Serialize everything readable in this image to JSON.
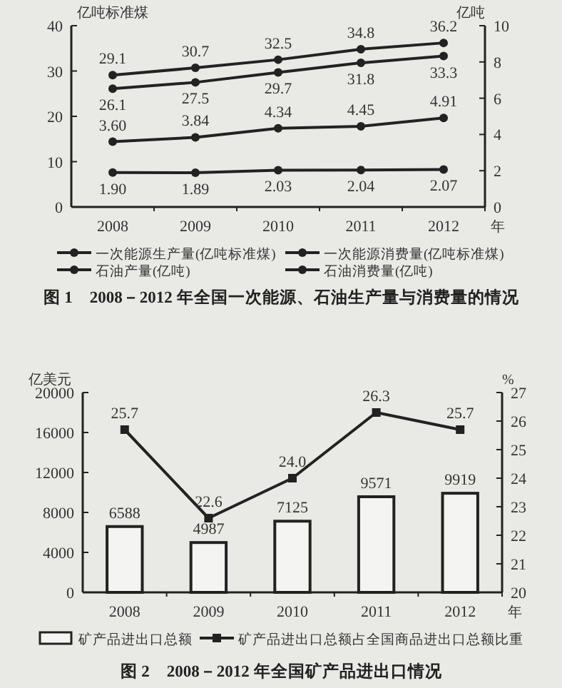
{
  "chart_data": [
    {
      "type": "line",
      "title": "图 1　2008－2012 年全国一次能源、石油生产量与消费量的情况",
      "ylabel": "亿吨标准煤",
      "y2label": "亿吨",
      "xlabel": "年",
      "categories": [
        "2008",
        "2009",
        "2010",
        "2011",
        "2012"
      ],
      "ylim": [
        0,
        40
      ],
      "yticks": [
        0,
        10,
        20,
        30,
        40
      ],
      "y2lim": [
        0,
        10
      ],
      "y2ticks": [
        0,
        2,
        4,
        6,
        8,
        10
      ],
      "legend": "bottom",
      "marker": "circle",
      "grid": false,
      "series": [
        {
          "name": "一次能源生产量(亿吨标准煤)",
          "color": "#222222",
          "values": [
            26.1,
            27.5,
            29.7,
            31.8,
            33.3
          ],
          "value_labels": [
            "26.1",
            "27.5",
            "29.7",
            "31.8",
            "33.3"
          ]
        },
        {
          "name": "一次能源消费量(亿吨标准煤)",
          "color": "#222222",
          "values": [
            29.1,
            30.7,
            32.5,
            34.8,
            36.2
          ],
          "value_labels": [
            "29.1",
            "30.7",
            "32.5",
            "34.8",
            "36.2"
          ]
        },
        {
          "name": "石油产量(亿吨)",
          "color": "#222222",
          "axis": "y2",
          "values": [
            1.9,
            1.89,
            2.03,
            2.04,
            2.07
          ],
          "value_labels": [
            "1.90",
            "1.89",
            "2.03",
            "2.04",
            "2.07"
          ]
        },
        {
          "name": "石油消费量(亿吨)",
          "color": "#222222",
          "axis": "y2",
          "values": [
            3.6,
            3.84,
            4.34,
            4.45,
            4.91
          ],
          "value_labels": [
            "3.60",
            "3.84",
            "4.34",
            "4.45",
            "4.91"
          ]
        }
      ]
    },
    {
      "type": "bar",
      "title": "图 2　2008－2012 年全国矿产品进出口情况",
      "ylabel": "亿美元",
      "y2label": "%",
      "xlabel": "年",
      "categories": [
        "2008",
        "2009",
        "2010",
        "2011",
        "2012"
      ],
      "ylim": [
        0,
        20000
      ],
      "yticks": [
        0,
        4000,
        8000,
        12000,
        16000,
        20000
      ],
      "y2lim": [
        20,
        27
      ],
      "y2ticks": [
        20,
        21,
        22,
        23,
        24,
        25,
        26,
        27
      ],
      "legend": "bottom",
      "grid": false,
      "series": [
        {
          "name": "矿产品进出口总额",
          "color": "#222222",
          "values": [
            6588,
            4987,
            7125,
            9571,
            9919
          ],
          "value_labels": [
            "6588",
            "4987",
            "7125",
            "9571",
            "9919"
          ]
        },
        {
          "name": "矿产品进出口总额占全国商品进出口总额比重",
          "type": "line",
          "marker": "square",
          "axis": "y2",
          "color": "#222222",
          "values": [
            25.7,
            22.6,
            24.0,
            26.3,
            25.7
          ],
          "value_labels": [
            "25.7",
            "22.6",
            "24.0",
            "26.3",
            "25.7"
          ]
        }
      ]
    }
  ]
}
